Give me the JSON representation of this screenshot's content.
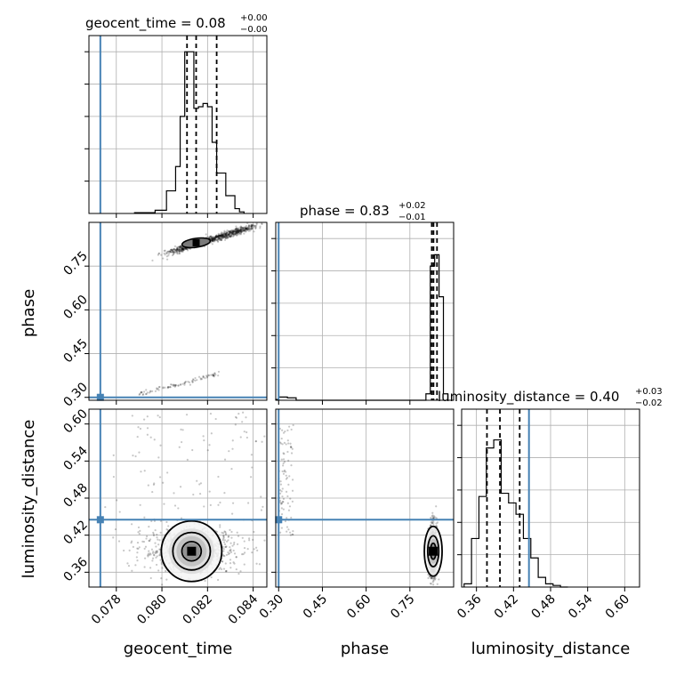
{
  "chart_data": {
    "type": "corner",
    "parameters": [
      "geocent_time",
      "phase",
      "luminosity_distance"
    ],
    "truths": {
      "geocent_time": 0.0773,
      "phase": 0.3,
      "luminosity_distance": 0.445
    },
    "titles": [
      {
        "param": "geocent_time",
        "text": "geocent_time = 0.08",
        "sup": "+0.00",
        "sub": "−0.00"
      },
      {
        "param": "phase",
        "text": "phase = 0.83",
        "sup": "+0.02",
        "sub": "−0.01"
      },
      {
        "param": "luminosity_distance",
        "text": "luminosity_distance = 0.40",
        "sup": "+0.03",
        "sub": "−0.02"
      }
    ],
    "ranges": {
      "geocent_time": [
        0.0768,
        0.0846
      ],
      "phase": [
        0.29,
        0.9
      ],
      "luminosity_distance": [
        0.336,
        0.624
      ]
    },
    "ticks": {
      "geocent_time": [
        "0.078",
        "0.080",
        "0.082",
        "0.084"
      ],
      "phase": [
        "0.30",
        "0.45",
        "0.60",
        "0.75"
      ],
      "luminosity_distance": [
        "0.36",
        "0.42",
        "0.48",
        "0.54",
        "0.60"
      ],
      "luminosity_distance_y": [
        "0.36",
        "0.42",
        "0.48",
        "0.54",
        "0.60"
      ]
    },
    "axis_labels": {
      "x": [
        "geocent_time",
        "phase",
        "luminosity_distance"
      ],
      "y": [
        "phase",
        "luminosity_distance"
      ]
    },
    "quantiles": {
      "geocent_time": [
        0.0811,
        0.0815,
        0.0824
      ],
      "phase": [
        0.825,
        0.831,
        0.843
      ],
      "luminosity_distance": [
        0.377,
        0.398,
        0.43
      ]
    },
    "histograms": {
      "geocent_time": {
        "bin_edges": [
          0.0788,
          0.0797,
          0.0802,
          0.0806,
          0.0808,
          0.081,
          0.0812,
          0.0814,
          0.0816,
          0.0818,
          0.082,
          0.0822,
          0.0824,
          0.0826,
          0.0828,
          0.083,
          0.0832,
          0.0834,
          0.0836
        ],
        "counts": [
          0.005,
          0.02,
          0.14,
          0.29,
          0.6,
          1.0,
          1.0,
          0.65,
          0.66,
          0.68,
          0.66,
          0.44,
          0.25,
          0.25,
          0.11,
          0.11,
          0.03,
          0.01
        ]
      },
      "phase": {
        "bin_edges": [
          0.29,
          0.3,
          0.33,
          0.36,
          0.78,
          0.805,
          0.82,
          0.835,
          0.85,
          0.865,
          0.88
        ],
        "counts": [
          0.005,
          0.02,
          0.015,
          0.0,
          0.0,
          0.04,
          0.83,
          0.9,
          0.64,
          0.04
        ]
      },
      "luminosity_distance": {
        "bin_edges": [
          0.34,
          0.352,
          0.364,
          0.376,
          0.388,
          0.4,
          0.412,
          0.424,
          0.436,
          0.448,
          0.46,
          0.472,
          0.484,
          0.496,
          0.508
        ],
        "counts": [
          0.02,
          0.3,
          0.56,
          0.86,
          0.91,
          0.58,
          0.52,
          0.45,
          0.3,
          0.18,
          0.06,
          0.02,
          0.01,
          0.0
        ]
      }
    },
    "scatter_2d": {
      "geocent_time_vs_phase": {
        "main_peak": [
          0.0815,
          0.83
        ],
        "secondary_band": [
          [
            0.079,
            0.31
          ],
          [
            0.0825,
            0.38
          ]
        ],
        "main_band": [
          [
            0.0798,
            0.785
          ],
          [
            0.0844,
            0.895
          ]
        ]
      },
      "geocent_time_vs_luminosity_distance": {
        "peak": [
          0.0813,
          0.394
        ]
      },
      "phase_vs_luminosity_distance": {
        "peak": [
          0.83,
          0.394
        ]
      }
    }
  }
}
